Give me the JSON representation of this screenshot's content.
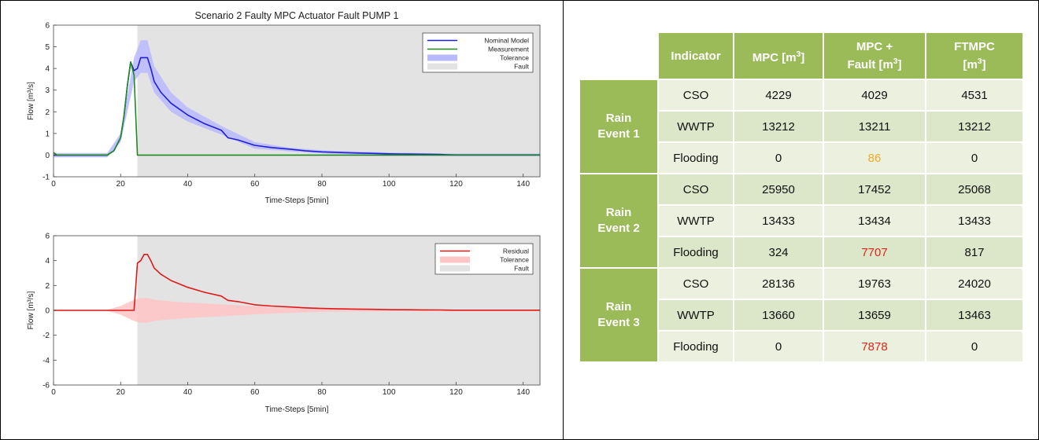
{
  "chart_data": [
    {
      "type": "line",
      "title": "Scenario 2 Faulty MPC Actuator Fault PUMP 1",
      "xlabel": "Time-Steps [5min]",
      "ylabel": "Flow [m³/s]",
      "xlim": [
        0,
        145
      ],
      "ylim": [
        -1,
        6
      ],
      "xticks": [
        "0",
        "20",
        "40",
        "60",
        "80",
        "100",
        "120",
        "140"
      ],
      "yticks": [
        "-1",
        "0",
        "1",
        "2",
        "3",
        "4",
        "5",
        "6"
      ],
      "legend_position": "top-right",
      "fault_region": [
        25,
        145
      ],
      "legend": [
        "Nominal Model",
        "Measurement",
        "Tolerance",
        "Fault"
      ],
      "series": [
        {
          "name": "Nominal Model",
          "color": "#1f1fd6",
          "x": [
            0,
            16,
            18,
            20,
            21,
            22,
            23,
            24,
            25,
            26,
            27,
            28,
            29,
            30,
            32,
            35,
            40,
            45,
            50,
            52,
            55,
            60,
            65,
            70,
            75,
            80,
            85,
            90,
            95,
            100,
            105,
            110,
            115,
            117,
            120,
            145
          ],
          "y": [
            0,
            0,
            0.2,
            0.8,
            1.8,
            3.2,
            4.3,
            3.9,
            4.0,
            4.5,
            4.5,
            4.5,
            4.0,
            3.4,
            2.9,
            2.4,
            1.85,
            1.45,
            1.15,
            0.8,
            0.7,
            0.45,
            0.35,
            0.28,
            0.2,
            0.15,
            0.12,
            0.1,
            0.08,
            0.06,
            0.05,
            0.04,
            0.03,
            0.02,
            0.01,
            0.01
          ]
        },
        {
          "name": "Measurement",
          "color": "#1f8a1f",
          "x": [
            0,
            1,
            2,
            16,
            18,
            20,
            21,
            22,
            23,
            24,
            25,
            26,
            145
          ],
          "y": [
            0.12,
            0,
            0,
            0,
            0.2,
            0.8,
            1.8,
            3.2,
            4.3,
            3.7,
            0,
            0,
            0
          ]
        }
      ],
      "tolerance_band": {
        "name": "Tolerance",
        "color": "#b9b9ff",
        "x": [
          0,
          16,
          20,
          24,
          26,
          28,
          30,
          35,
          40,
          50,
          60,
          70,
          80,
          100,
          120,
          145
        ],
        "upper": [
          0.1,
          0.1,
          1.0,
          4.5,
          5.3,
          5.3,
          4.1,
          2.9,
          2.2,
          1.35,
          0.6,
          0.35,
          0.22,
          0.12,
          0.07,
          0.07
        ],
        "lower": [
          -0.1,
          -0.1,
          0.6,
          3.4,
          3.8,
          3.8,
          2.9,
          2.0,
          1.55,
          0.95,
          0.3,
          0.18,
          0.08,
          0.0,
          -0.05,
          -0.05
        ]
      }
    },
    {
      "type": "line",
      "title": "",
      "xlabel": "Time-Steps [5min]",
      "ylabel": "Flow [m³/s]",
      "xlim": [
        0,
        145
      ],
      "ylim": [
        -6,
        6
      ],
      "xticks": [
        "0",
        "20",
        "40",
        "60",
        "80",
        "100",
        "120",
        "140"
      ],
      "yticks": [
        "-6",
        "-4",
        "-2",
        "0",
        "2",
        "4",
        "6"
      ],
      "legend_position": "top-right",
      "fault_region": [
        25,
        145
      ],
      "legend": [
        "Residual",
        "Tolerance",
        "Fault"
      ],
      "series": [
        {
          "name": "Residual",
          "color": "#e01818",
          "x": [
            0,
            24,
            25,
            26,
            27,
            28,
            29,
            30,
            32,
            35,
            40,
            45,
            50,
            52,
            55,
            60,
            65,
            70,
            75,
            80,
            85,
            90,
            95,
            100,
            105,
            110,
            115,
            117,
            120,
            145
          ],
          "y": [
            0,
            0,
            3.8,
            4.0,
            4.5,
            4.5,
            4.0,
            3.4,
            2.9,
            2.4,
            1.85,
            1.45,
            1.15,
            0.8,
            0.7,
            0.45,
            0.35,
            0.28,
            0.2,
            0.15,
            0.12,
            0.1,
            0.08,
            0.06,
            0.05,
            0.04,
            0.03,
            0.02,
            0.01,
            0.01
          ]
        }
      ],
      "tolerance_band": {
        "name": "Tolerance",
        "color": "#ffc4c4",
        "x": [
          0,
          16,
          20,
          24,
          26,
          28,
          30,
          35,
          40,
          50,
          60,
          70,
          80,
          100,
          120,
          145
        ],
        "upper": [
          0.05,
          0.05,
          0.35,
          0.85,
          1.0,
          1.0,
          0.85,
          0.72,
          0.62,
          0.48,
          0.32,
          0.2,
          0.12,
          0.07,
          0.05,
          0.05
        ],
        "lower": [
          -0.05,
          -0.05,
          -0.35,
          -0.85,
          -1.0,
          -1.0,
          -0.85,
          -0.72,
          -0.62,
          -0.48,
          -0.32,
          -0.2,
          -0.12,
          -0.07,
          -0.05,
          -0.05
        ]
      }
    }
  ],
  "table": {
    "headers": {
      "indicator": "Indicator",
      "mpc": "MPC [m",
      "mpc_fault_line1": "MPC +",
      "mpc_fault_line2": "Fault [m",
      "ftmpc_line1": "FTMPC",
      "ftmpc_line2": "[m",
      "unit_sup": "3",
      "unit_close": "]"
    },
    "events": [
      {
        "line1": "Rain",
        "line2": "Event 1",
        "rows": [
          {
            "indicator": "CSO",
            "mpc": "4229",
            "mpc_fault": "4029",
            "ftmpc": "4531"
          },
          {
            "indicator": "WWTP",
            "mpc": "13212",
            "mpc_fault": "13211",
            "ftmpc": "13212"
          },
          {
            "indicator": "Flooding",
            "mpc": "0",
            "mpc_fault": "86",
            "ftmpc": "0"
          }
        ]
      },
      {
        "line1": "Rain",
        "line2": "Event 2",
        "rows": [
          {
            "indicator": "CSO",
            "mpc": "25950",
            "mpc_fault": "17452",
            "ftmpc": "25068"
          },
          {
            "indicator": "WWTP",
            "mpc": "13433",
            "mpc_fault": "13434",
            "ftmpc": "13433"
          },
          {
            "indicator": "Flooding",
            "mpc": "324",
            "mpc_fault": "7707",
            "ftmpc": "817"
          }
        ]
      },
      {
        "line1": "Rain",
        "line2": "Event 3",
        "rows": [
          {
            "indicator": "CSO",
            "mpc": "28136",
            "mpc_fault": "19763",
            "ftmpc": "24020"
          },
          {
            "indicator": "WWTP",
            "mpc": "13660",
            "mpc_fault": "13659",
            "ftmpc": "13463"
          },
          {
            "indicator": "Flooding",
            "mpc": "0",
            "mpc_fault": "7878",
            "ftmpc": "0"
          }
        ]
      }
    ],
    "highlight_colors": {
      "orange": "#f0a92a",
      "red": "#e0261b"
    }
  }
}
